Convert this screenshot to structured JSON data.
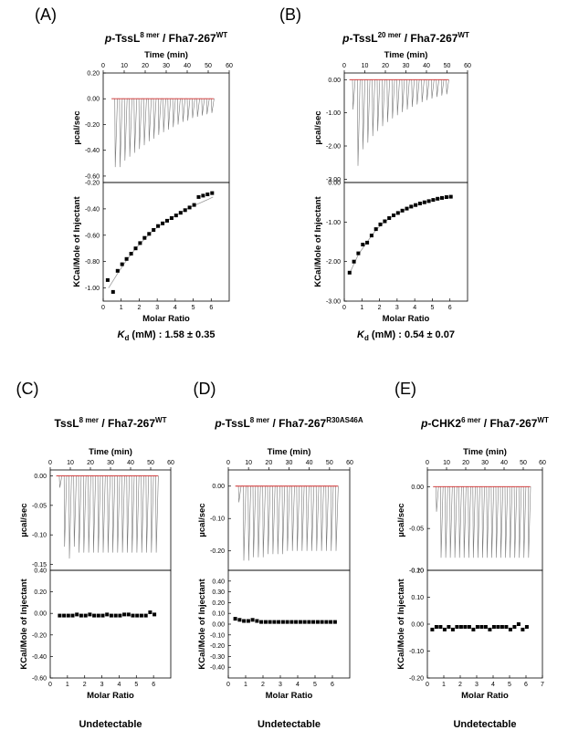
{
  "chart_data": [
    {
      "type": "scatter",
      "panel_label": "(A)",
      "title_prefix": "p",
      "title_main": "-TssL",
      "title_sup": "8 mer",
      "title_mid": " / Fha7-267",
      "title_sup2": "WT",
      "top_xlabel": "Time (min)",
      "xlabel": "Molar Ratio",
      "upper_ylabel": "µcal/sec",
      "lower_ylabel": "KCal/Mole of Injectant",
      "time_xlim": [
        0,
        60
      ],
      "time_ticks": [
        "0",
        "10",
        "20",
        "30",
        "40",
        "50",
        "60"
      ],
      "raw_ylim": [
        -0.65,
        0.2
      ],
      "raw_ticks": [
        "0.20",
        "0.00",
        "-0.20",
        "-0.40",
        "-0.60"
      ],
      "raw_injection_times": [
        5.5,
        7.8,
        10.1,
        12.4,
        14.7,
        17.0,
        19.3,
        21.6,
        23.9,
        26.2,
        28.5,
        30.8,
        33.1,
        35.4,
        37.7,
        40.0,
        42.3,
        44.6,
        46.9,
        49.2,
        51.5
      ],
      "raw_peak_heights": [
        -0.53,
        -0.53,
        -0.48,
        -0.45,
        -0.42,
        -0.39,
        -0.36,
        -0.33,
        -0.31,
        -0.28,
        -0.26,
        -0.24,
        -0.22,
        -0.2,
        -0.18,
        -0.17,
        -0.15,
        -0.14,
        -0.13,
        -0.12,
        -0.11
      ],
      "iso_xlim": [
        0,
        7
      ],
      "iso_ticks": [
        "0",
        "1",
        "2",
        "3",
        "4",
        "5",
        "6"
      ],
      "iso_ylim": [
        -1.1,
        -0.2
      ],
      "iso_yticks": [
        "-0.20",
        "-0.40",
        "-0.60",
        "-0.80",
        "-1.00"
      ],
      "points_x": [
        0.25,
        0.55,
        0.8,
        1.05,
        1.3,
        1.55,
        1.8,
        2.05,
        2.3,
        2.55,
        2.8,
        3.05,
        3.3,
        3.55,
        3.8,
        4.05,
        4.3,
        4.55,
        4.8,
        5.05,
        5.3,
        5.55,
        5.8,
        6.05
      ],
      "points_y": [
        -0.94,
        -1.03,
        -0.87,
        -0.82,
        -0.78,
        -0.74,
        -0.7,
        -0.66,
        -0.62,
        -0.59,
        -0.56,
        -0.53,
        -0.51,
        -0.49,
        -0.47,
        -0.45,
        -0.43,
        -0.41,
        -0.39,
        -0.37,
        -0.31,
        -0.3,
        -0.29,
        -0.28
      ],
      "fit_x": [
        0.3,
        0.8,
        1.3,
        1.8,
        2.3,
        2.8,
        3.3,
        3.8,
        4.3,
        4.8,
        5.3,
        5.8,
        6.1
      ],
      "fit_y": [
        -1.0,
        -0.89,
        -0.79,
        -0.7,
        -0.63,
        -0.56,
        -0.51,
        -0.47,
        -0.43,
        -0.39,
        -0.36,
        -0.33,
        -0.31
      ],
      "result_k": "K",
      "result_k_sub": "d",
      "result_text": " (mM) : 1.58 ± 0.35"
    },
    {
      "type": "scatter",
      "panel_label": "(B)",
      "title_prefix": "p",
      "title_main": "-TssL",
      "title_sup": "20 mer",
      "title_mid": " / Fha7-267",
      "title_sup2": "WT",
      "top_xlabel": "Time (min)",
      "xlabel": "Molar Ratio",
      "upper_ylabel": "µcal/sec",
      "lower_ylabel": "KCal/Mole of Injectant",
      "time_xlim": [
        0,
        60
      ],
      "time_ticks": [
        "0",
        "10",
        "20",
        "30",
        "40",
        "50",
        "60"
      ],
      "raw_ylim": [
        -3.1,
        0.2
      ],
      "raw_ticks": [
        "0.00",
        "-1.00",
        "-2.00",
        "-3.00"
      ],
      "raw_injection_times": [
        4.0,
        6.4,
        8.8,
        11.2,
        13.6,
        16.0,
        18.4,
        20.8,
        23.2,
        25.6,
        28.0,
        30.4,
        32.8,
        35.2,
        37.6,
        40.0,
        42.4,
        44.8,
        47.2,
        49.6
      ],
      "raw_peak_heights": [
        -0.9,
        -2.6,
        -2.1,
        -1.9,
        -1.7,
        -1.55,
        -1.4,
        -1.28,
        -1.17,
        -1.07,
        -0.98,
        -0.9,
        -0.82,
        -0.75,
        -0.68,
        -0.62,
        -0.57,
        -0.52,
        -0.48,
        -0.44
      ],
      "iso_xlim": [
        0,
        7
      ],
      "iso_ticks": [
        "0",
        "1",
        "2",
        "3",
        "4",
        "5",
        "6"
      ],
      "iso_ylim": [
        -3.0,
        0.0
      ],
      "iso_yticks": [
        "0.00",
        "-1.00",
        "-2.00",
        "-3.00"
      ],
      "points_x": [
        0.3,
        0.55,
        0.8,
        1.05,
        1.3,
        1.55,
        1.8,
        2.05,
        2.3,
        2.55,
        2.8,
        3.05,
        3.3,
        3.55,
        3.8,
        4.05,
        4.3,
        4.55,
        4.8,
        5.05,
        5.3,
        5.55,
        5.8,
        6.05
      ],
      "points_y": [
        -2.28,
        -2.0,
        -1.79,
        -1.57,
        -1.52,
        -1.34,
        -1.18,
        -1.06,
        -0.98,
        -0.9,
        -0.83,
        -0.77,
        -0.71,
        -0.66,
        -0.61,
        -0.57,
        -0.53,
        -0.5,
        -0.47,
        -0.44,
        -0.41,
        -0.39,
        -0.37,
        -0.36
      ],
      "fit_x": [
        0.3,
        0.8,
        1.3,
        1.8,
        2.3,
        2.8,
        3.3,
        3.8,
        4.3,
        4.8,
        5.3,
        5.8,
        6.1
      ],
      "fit_y": [
        -2.3,
        -1.82,
        -1.5,
        -1.2,
        -0.99,
        -0.84,
        -0.72,
        -0.62,
        -0.54,
        -0.47,
        -0.42,
        -0.38,
        -0.36
      ],
      "result_k": "K",
      "result_k_sub": "d",
      "result_text": " (mM) : 0.54 ± 0.07"
    },
    {
      "type": "scatter",
      "panel_label": "(C)",
      "title_prefix": "",
      "title_main": "TssL",
      "title_sup": "8 mer",
      "title_mid": " / Fha7-267",
      "title_sup2": "WT",
      "top_xlabel": "Time (min)",
      "xlabel": "Molar Ratio",
      "upper_ylabel": "µcal/sec",
      "lower_ylabel": "KCal/Mole of Injectant",
      "time_xlim": [
        0,
        60
      ],
      "time_ticks": [
        "0",
        "10",
        "20",
        "30",
        "40",
        "50",
        "60"
      ],
      "raw_ylim": [
        -0.16,
        0.01
      ],
      "raw_ticks": [
        "0.00",
        "-0.05",
        "-0.10",
        "-0.15"
      ],
      "raw_injection_times": [
        4.5,
        6.9,
        9.3,
        11.7,
        14.1,
        16.5,
        18.9,
        21.3,
        23.7,
        26.1,
        28.5,
        30.9,
        33.3,
        35.7,
        38.1,
        40.5,
        42.9,
        45.3,
        47.7,
        50.1,
        52.5
      ],
      "raw_peak_heights": [
        -0.02,
        -0.12,
        -0.14,
        -0.12,
        -0.13,
        -0.13,
        -0.13,
        -0.13,
        -0.13,
        -0.13,
        -0.13,
        -0.13,
        -0.13,
        -0.13,
        -0.13,
        -0.13,
        -0.13,
        -0.13,
        -0.13,
        -0.13,
        -0.13
      ],
      "iso_xlim": [
        0,
        7
      ],
      "iso_ticks": [
        "0",
        "1",
        "2",
        "3",
        "4",
        "5",
        "6"
      ],
      "iso_ylim": [
        -0.6,
        0.4
      ],
      "iso_yticks": [
        "0.40",
        "0.20",
        "0.00",
        "-0.20",
        "-0.40",
        "-0.60"
      ],
      "points_x": [
        0.55,
        0.8,
        1.05,
        1.3,
        1.55,
        1.8,
        2.05,
        2.3,
        2.55,
        2.8,
        3.05,
        3.3,
        3.55,
        3.8,
        4.05,
        4.3,
        4.55,
        4.8,
        5.05,
        5.3,
        5.55,
        5.8,
        6.05
      ],
      "points_y": [
        -0.02,
        -0.02,
        -0.02,
        -0.02,
        -0.01,
        -0.02,
        -0.02,
        -0.01,
        -0.02,
        -0.02,
        -0.02,
        -0.01,
        -0.02,
        -0.02,
        -0.02,
        -0.01,
        -0.01,
        -0.02,
        -0.02,
        -0.02,
        -0.02,
        0.01,
        -0.01
      ],
      "fit_x": [],
      "fit_y": [],
      "result_text": "Undetectable"
    },
    {
      "type": "scatter",
      "panel_label": "(D)",
      "title_prefix": "p",
      "title_main": "-TssL",
      "title_sup": "8 mer",
      "title_mid": " / Fha7-267",
      "title_sup2": "R30AS46A",
      "top_xlabel": "Time (min)",
      "xlabel": "Molar Ratio",
      "upper_ylabel": "µcal/sec",
      "lower_ylabel": "KCal/Mole of Injectant",
      "time_xlim": [
        0,
        60
      ],
      "time_ticks": [
        "0",
        "10",
        "20",
        "30",
        "40",
        "50",
        "60"
      ],
      "raw_ylim": [
        -0.26,
        0.05
      ],
      "raw_ticks": [
        "0.00",
        "-0.10",
        "-0.20"
      ],
      "raw_injection_times": [
        5.0,
        7.4,
        9.8,
        12.2,
        14.6,
        17.0,
        19.4,
        21.8,
        24.2,
        26.6,
        29.0,
        31.4,
        33.8,
        36.2,
        38.6,
        41.0,
        43.4,
        45.8,
        48.2,
        50.6,
        53.0
      ],
      "raw_peak_heights": [
        -0.05,
        -0.23,
        -0.23,
        -0.22,
        -0.22,
        -0.22,
        -0.21,
        -0.21,
        -0.21,
        -0.21,
        -0.2,
        -0.2,
        -0.2,
        -0.2,
        -0.2,
        -0.2,
        -0.2,
        -0.2,
        -0.2,
        -0.2,
        -0.2
      ],
      "iso_xlim": [
        0,
        7
      ],
      "iso_ticks": [
        "0",
        "1",
        "2",
        "3",
        "4",
        "5",
        "6"
      ],
      "iso_ylim": [
        -0.5,
        0.5
      ],
      "iso_yticks": [
        "0.40",
        "0.30",
        "0.20",
        "0.10",
        "0.00",
        "-0.10",
        "-0.20",
        "-0.30",
        "-0.40"
      ],
      "points_x": [
        0.4,
        0.65,
        0.9,
        1.15,
        1.4,
        1.65,
        1.9,
        2.15,
        2.4,
        2.65,
        2.9,
        3.15,
        3.4,
        3.65,
        3.9,
        4.15,
        4.4,
        4.65,
        4.9,
        5.15,
        5.4,
        5.65,
        5.9,
        6.15
      ],
      "points_y": [
        0.05,
        0.04,
        0.03,
        0.03,
        0.04,
        0.03,
        0.02,
        0.02,
        0.02,
        0.02,
        0.02,
        0.02,
        0.02,
        0.02,
        0.02,
        0.02,
        0.02,
        0.02,
        0.02,
        0.02,
        0.02,
        0.02,
        0.02,
        0.02
      ],
      "fit_x": [],
      "fit_y": [],
      "result_text": "Undetectable"
    },
    {
      "type": "scatter",
      "panel_label": "(E)",
      "title_prefix": "p",
      "title_main": "-CHK2",
      "title_sup": "6 mer",
      "title_mid": " / Fha7-267",
      "title_sup2": "WT",
      "top_xlabel": "Time (min)",
      "xlabel": "Molar Ratio",
      "upper_ylabel": "µcal/sec",
      "lower_ylabel": "KCal/Mole of Injectant",
      "time_xlim": [
        0,
        60
      ],
      "time_ticks": [
        "0",
        "10",
        "20",
        "30",
        "40",
        "50",
        "60"
      ],
      "raw_ylim": [
        -0.1,
        0.02
      ],
      "raw_ticks": [
        "0.00",
        "-0.05",
        "-0.10"
      ],
      "raw_injection_times": [
        4.5,
        6.9,
        9.3,
        11.7,
        14.1,
        16.5,
        18.9,
        21.3,
        23.7,
        26.1,
        28.5,
        30.9,
        33.3,
        35.7,
        38.1,
        40.5,
        42.9,
        45.3,
        47.7,
        50.1,
        52.5
      ],
      "raw_peak_heights": [
        -0.03,
        -0.085,
        -0.085,
        -0.085,
        -0.085,
        -0.085,
        -0.085,
        -0.085,
        -0.085,
        -0.085,
        -0.085,
        -0.085,
        -0.085,
        -0.085,
        -0.085,
        -0.085,
        -0.085,
        -0.085,
        -0.085,
        -0.085,
        -0.085
      ],
      "iso_xlim": [
        0,
        7
      ],
      "iso_ticks": [
        "0",
        "1",
        "2",
        "3",
        "4",
        "5",
        "6",
        "7"
      ],
      "iso_ylim": [
        -0.2,
        0.2
      ],
      "iso_yticks": [
        "0.20",
        "0.10",
        "0.00",
        "-0.10",
        "-0.20"
      ],
      "points_x": [
        0.3,
        0.55,
        0.8,
        1.05,
        1.3,
        1.55,
        1.8,
        2.05,
        2.3,
        2.55,
        2.8,
        3.05,
        3.3,
        3.55,
        3.8,
        4.05,
        4.3,
        4.55,
        4.8,
        5.05,
        5.3,
        5.55,
        5.8,
        6.05
      ],
      "points_y": [
        -0.02,
        -0.01,
        -0.01,
        -0.02,
        -0.01,
        -0.02,
        -0.01,
        -0.01,
        -0.01,
        -0.01,
        -0.02,
        -0.01,
        -0.01,
        -0.01,
        -0.02,
        -0.01,
        -0.01,
        -0.01,
        -0.01,
        -0.02,
        -0.01,
        0.0,
        -0.02,
        -0.01
      ],
      "fit_x": [],
      "fit_y": [],
      "result_text": "Undetectable"
    }
  ],
  "colors": {
    "baseline": "#d32f2f",
    "trace": "#7a7a7a",
    "fit": "#9a9a9a",
    "points": "#000000"
  }
}
